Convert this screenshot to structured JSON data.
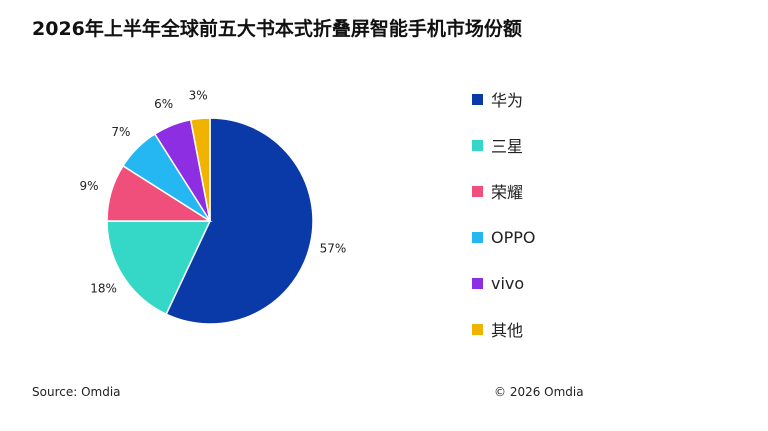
{
  "chart_data": {
    "type": "pie",
    "title": "2026年上半年全球前五大书本式折叠屏智能手机市场份额",
    "categories": [
      "华为",
      "三星",
      "荣耀",
      "OPPO",
      "vivo",
      "其他"
    ],
    "values": [
      57,
      18,
      9,
      7,
      6,
      3
    ],
    "value_labels": [
      "57%",
      "18%",
      "9%",
      "7%",
      "6%",
      "3%"
    ],
    "colors": [
      "#0a3aa8",
      "#35d8c7",
      "#f04f7b",
      "#25b7f2",
      "#8e2ee3",
      "#f0b400"
    ],
    "legend_position": "right",
    "start_angle": "12 o'clock",
    "direction": "clockwise"
  },
  "footer": {
    "source": "Source: Omdia",
    "copyright": "© 2026 Omdia"
  }
}
